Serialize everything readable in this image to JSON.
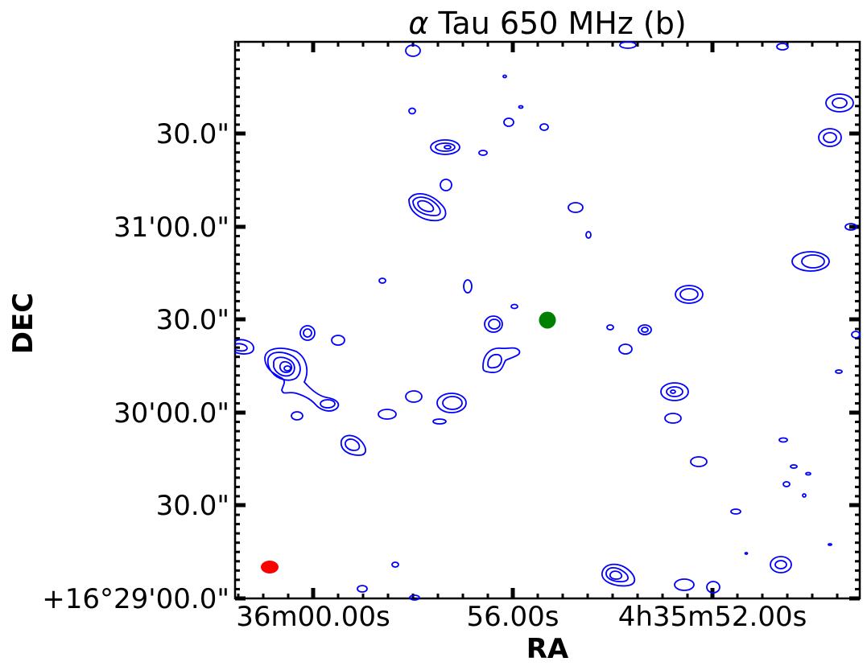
{
  "chart_data": {
    "type": "contour",
    "title_symbol": "α",
    "title_text": " Tau 650 MHz  (b)",
    "xlabel": "RA",
    "ylabel": "DEC",
    "x_ticks": [
      "36m00.00s",
      "56.00s",
      "4h35m52.00s"
    ],
    "y_ticks": [
      "+16°29'00.0\"",
      "30.0\"",
      "30'00.0\"",
      "30.0\"",
      "31'00.0\"",
      "30.0\""
    ],
    "contour_color": "#0000ff",
    "star_marker_color": "#008000",
    "beam_color": "#ff0000",
    "grid": false
  }
}
